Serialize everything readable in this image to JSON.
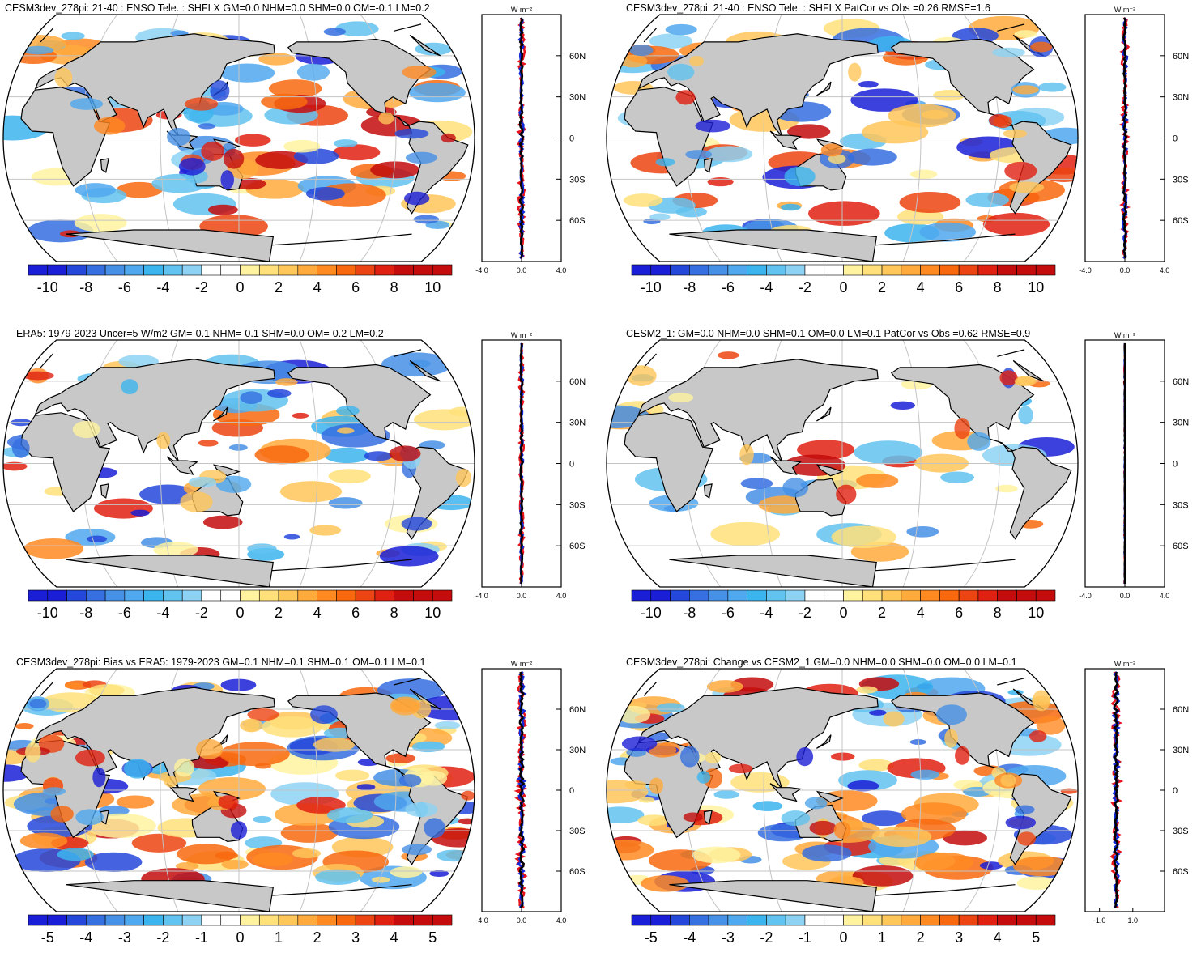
{
  "colors": {
    "land": "#c8c8c8",
    "ocean": "#ffffff",
    "grid": "#c4c4c4",
    "zonal_ocean": "#e8141b",
    "zonal_land": "#1028d8",
    "zonal_total": "#000000"
  },
  "colorbar_colors": [
    "#1a1ed6",
    "#2448da",
    "#356fe0",
    "#4690e6",
    "#50a8ee",
    "#3cb4ee",
    "#62c2f0",
    "#8dd2f3",
    "#ffffff",
    "#ffffff",
    "#fff3a0",
    "#ffe07a",
    "#ffc65a",
    "#ffaa3c",
    "#ff8a22",
    "#f8680e",
    "#ec4412",
    "#e02010",
    "#c40c0c"
  ],
  "zonal_unit": "W m⁻²",
  "latitude_labels": [
    "60N",
    "30N",
    "0",
    "30S",
    "60S"
  ],
  "panels": [
    {
      "title": "CESM3dev_278pi: 21-40 : ENSO Tele. : SHFLX GM=0.0 NHM=0.0 SHM=0.0 OM=-0.1 LM=0.2",
      "colorbar_labels": [
        "-10",
        "-8",
        "-6",
        "-4",
        "-2",
        "0",
        "2",
        "4",
        "6",
        "8",
        "10"
      ],
      "zonal_ticks": [
        "-4.0",
        "0.0",
        "4.0"
      ]
    },
    {
      "title": "CESM3dev_278pi: 21-40 : ENSO Tele. : SHFLX PatCor vs Obs =0.26 RMSE=1.6",
      "colorbar_labels": [
        "-10",
        "-8",
        "-6",
        "-4",
        "-2",
        "0",
        "2",
        "4",
        "6",
        "8",
        "10"
      ],
      "zonal_ticks": [
        "-4.0",
        "0.0",
        "4.0"
      ]
    },
    {
      "title": "ERA5: 1979-2023 Uncer=5 W/m2 GM=-0.1 NHM=-0.1 SHM=0.0 OM=-0.2 LM=0.2",
      "colorbar_labels": [
        "-10",
        "-8",
        "-6",
        "-4",
        "-2",
        "0",
        "2",
        "4",
        "6",
        "8",
        "10"
      ],
      "zonal_ticks": [
        "-4.0",
        "0.0",
        "4.0"
      ]
    },
    {
      "title": "CESM2_1: GM=0.0 NHM=0.0 SHM=0.1 OM=0.0 LM=0.1 PatCor vs Obs =0.62 RMSE=0.9",
      "colorbar_labels": [
        "-10",
        "-8",
        "-6",
        "-4",
        "-2",
        "0",
        "2",
        "4",
        "6",
        "8",
        "10"
      ],
      "zonal_ticks": [
        "-4.0",
        "0.0",
        "4.0"
      ]
    },
    {
      "title": "CESM3dev_278pi: Bias vs ERA5: 1979-2023 GM=0.1 NHM=0.1 SHM=0.1 OM=0.1 LM=0.1",
      "colorbar_labels": [
        "-5",
        "-4",
        "-3",
        "-2",
        "-1",
        "0",
        "1",
        "2",
        "3",
        "4",
        "5"
      ],
      "zonal_ticks": [
        "-4.0",
        "0.0",
        "4.0"
      ]
    },
    {
      "title": "CESM3dev_278pi: Change vs CESM2_1 GM=0.0 NHM=0.0 SHM=0.0 OM=0.0 LM=0.1",
      "colorbar_labels": [
        "-5",
        "-4",
        "-3",
        "-2",
        "-1",
        "0",
        "1",
        "2",
        "3",
        "4",
        "5"
      ],
      "zonal_ticks": [
        "-1.0",
        "1.0"
      ]
    }
  ]
}
